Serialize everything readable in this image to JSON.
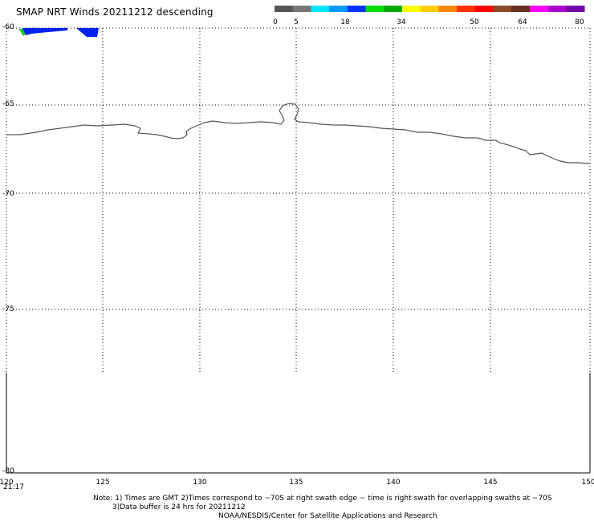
{
  "header": {
    "title": "SMAP NRT Winds  20211212 descending"
  },
  "colorbar": {
    "segments": [
      {
        "color": "#555555"
      },
      {
        "color": "#777777"
      },
      {
        "color": "#00e5ff"
      },
      {
        "color": "#0099ff"
      },
      {
        "color": "#0033ff"
      },
      {
        "color": "#00dd00"
      },
      {
        "color": "#00aa00"
      },
      {
        "color": "#ffff00"
      },
      {
        "color": "#ffcc00"
      },
      {
        "color": "#ff8800"
      },
      {
        "color": "#ff3300"
      },
      {
        "color": "#ff0000"
      },
      {
        "color": "#8b4a2a"
      },
      {
        "color": "#6a3020"
      },
      {
        "color": "#ff00ff"
      },
      {
        "color": "#aa00cc"
      },
      {
        "color": "#7700aa"
      }
    ],
    "ticks": [
      "0",
      "5",
      "18",
      "34",
      "50",
      "64",
      "80"
    ]
  },
  "map": {
    "lat_labels": [
      "-60",
      "-65",
      "-70",
      "-75",
      "-80"
    ],
    "lon_labels": [
      "120",
      "125",
      "130",
      "135",
      "140",
      "145",
      "150"
    ],
    "time_label": "21:17",
    "swath_colors": {
      "blue": "#0022ee",
      "green": "#00cc00"
    },
    "coast_color": "#555555"
  },
  "footer": {
    "note_line1": "Note: 1) Times are GMT 2)Times correspond to ~70S at right swath edge ~ time is right swath for overlapping swaths at ~70S",
    "note_line2": "3)Data buffer is 24 hrs for 20211212",
    "credit": "NOAA/NESDIS/Center for Satellite Applications and Research"
  }
}
